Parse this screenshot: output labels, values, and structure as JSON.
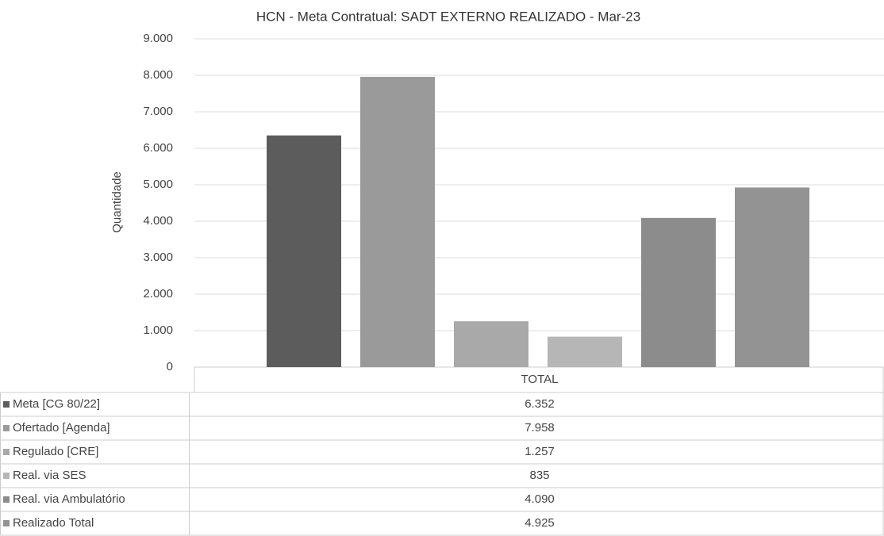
{
  "chart_data": {
    "type": "bar",
    "title": "HCN - Meta Contratual: SADT EXTERNO REALIZADO - Mar-23",
    "y_label": "Quantidade",
    "categories": [
      "TOTAL"
    ],
    "series": [
      {
        "name": "Meta [CG 80/22]",
        "color": "#5c5c5c",
        "values": [
          6352
        ],
        "value_labels": [
          "6.352"
        ]
      },
      {
        "name": "Ofertado [Agenda]",
        "color": "#9a9a9a",
        "values": [
          7958
        ],
        "value_labels": [
          "7.958"
        ]
      },
      {
        "name": "Regulado [CRE]",
        "color": "#a9a9a9",
        "values": [
          1257
        ],
        "value_labels": [
          "1.257"
        ]
      },
      {
        "name": "Real. via SES",
        "color": "#b6b6b6",
        "values": [
          835
        ],
        "value_labels": [
          "835"
        ]
      },
      {
        "name": "Real. via Ambulatório",
        "color": "#8c8c8c",
        "values": [
          4090
        ],
        "value_labels": [
          "4.090"
        ]
      },
      {
        "name": "Realizado Total",
        "color": "#939393",
        "values": [
          4925
        ],
        "value_labels": [
          "4.925"
        ]
      }
    ],
    "ylim": [
      0,
      9000
    ],
    "yticks": [
      0,
      {
        "value": 1000,
        "label": "1.000"
      },
      {
        "value": 2000,
        "label": "2.000"
      },
      {
        "value": 3000,
        "label": "3.000"
      },
      {
        "value": 4000,
        "label": "4.000"
      },
      {
        "value": 5000,
        "label": "5.000"
      },
      {
        "value": 6000,
        "label": "6.000"
      },
      {
        "value": 7000,
        "label": "7.000"
      },
      {
        "value": 8000,
        "label": "8.000"
      },
      {
        "value": 9000,
        "label": "9.000"
      }
    ],
    "grid": true
  }
}
